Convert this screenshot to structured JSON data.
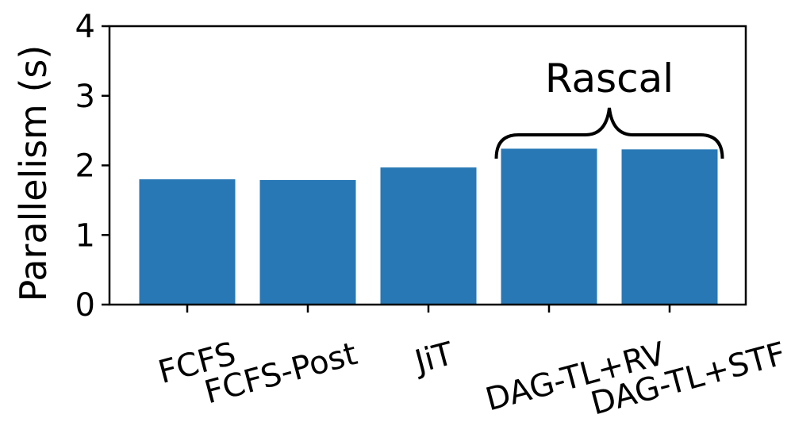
{
  "chart_data": {
    "type": "bar",
    "categories": [
      "FCFS",
      "FCFS-Post",
      "JiT",
      "DAG-TL+RV",
      "DAG-TL+STF"
    ],
    "values": [
      1.8,
      1.79,
      1.97,
      2.24,
      2.23
    ],
    "title": "",
    "xlabel": "",
    "ylabel": "Parallelism (s)",
    "ylim": [
      0,
      4
    ],
    "yticks": [
      "0",
      "1",
      "2",
      "3",
      "4"
    ],
    "bar_color": "#2878b5",
    "grid": false,
    "annotation": {
      "text": "Rascal",
      "groups_categories": [
        "DAG-TL+RV",
        "DAG-TL+STF"
      ]
    }
  }
}
